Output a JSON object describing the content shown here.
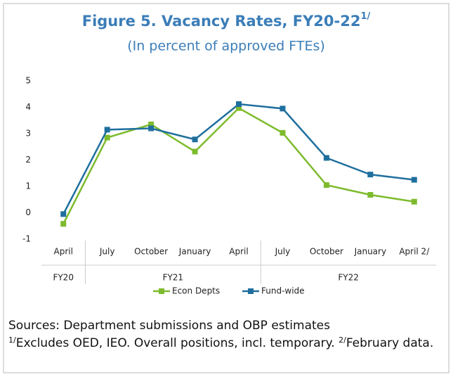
{
  "chart_data": {
    "type": "line",
    "title": "Figure 5. Vacancy Rates, FY20-22",
    "title_note": "1/",
    "subtitle": "(In percent of approved FTEs)",
    "categories": [
      "April",
      "July",
      "October",
      "January",
      "April",
      "July",
      "October",
      "January",
      "April 2/"
    ],
    "groups": [
      {
        "name": "FY20",
        "span": 1
      },
      {
        "name": "FY21",
        "span": 4
      },
      {
        "name": "FY22",
        "span": 4
      }
    ],
    "series": [
      {
        "name": "Econ Depts",
        "color": "#7dbb2c",
        "values": [
          -0.42,
          2.85,
          3.35,
          2.32,
          3.97,
          3.03,
          1.05,
          0.68,
          0.42
        ]
      },
      {
        "name": "Fund-wide",
        "color": "#1f6f9e",
        "values": [
          -0.05,
          3.15,
          3.2,
          2.78,
          4.12,
          3.95,
          2.08,
          1.45,
          1.25
        ]
      }
    ],
    "ylim": [
      -1,
      5
    ],
    "yticks": [
      -1,
      0,
      1,
      2,
      3,
      4,
      5
    ],
    "grid": false,
    "legend": "bottom",
    "source": "Sources: Department submissions and OBP estimates",
    "footnotes": [
      {
        "mark": "1/",
        "text": "Excludes OED, IEO. Overall positions, incl. temporary. "
      },
      {
        "mark": "2/",
        "text": "February data."
      }
    ]
  }
}
